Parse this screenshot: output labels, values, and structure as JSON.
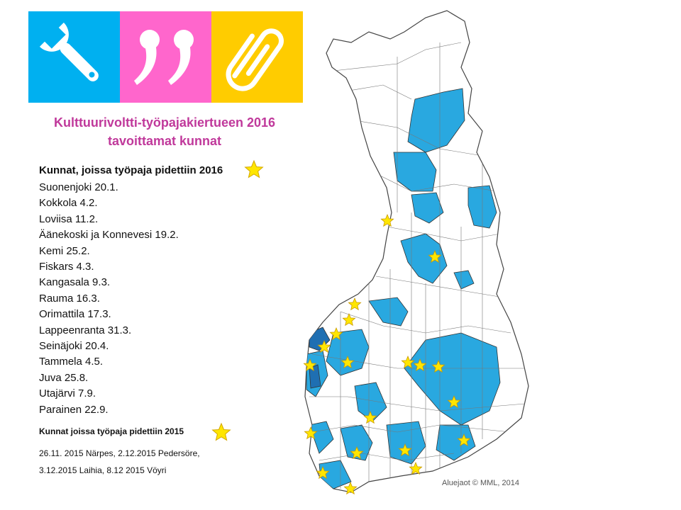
{
  "title_lines": [
    "Kulttuurivoltti-työpajakiertueen 2016",
    "tavoittamat kunnat"
  ],
  "colors": {
    "tile_blue": "#00b0f0",
    "tile_pink": "#ff66cc",
    "tile_yellow": "#ffcc00",
    "title": "#c0399b",
    "municipality_fill": "#29a8e0",
    "coast_fill": "#1f6fb2",
    "star": "#ffe600"
  },
  "icons": [
    "wrench-icon",
    "quote-icon",
    "paperclip-icon",
    "star-icon"
  ],
  "list_2016": {
    "heading": "Kunnat, joissa työpaja pidettiin 2016",
    "items": [
      "Suonenjoki 20.1.",
      "Kokkola 4.2.",
      "Loviisa 11.2.",
      "Äänekoski ja Konnevesi 19.2.",
      "Kemi 25.2.",
      "Fiskars 4.3.",
      "Kangasala 9.3.",
      "Rauma 16.3.",
      "Orimattila 17.3.",
      "Lappeenranta 31.3.",
      "Seinäjoki 20.4.",
      "Tammela 4.5.",
      "Juva 25.8.",
      "Utajärvi 7.9.",
      "Parainen 22.9."
    ]
  },
  "list_2015": {
    "heading": "Kunnat joissa työpaja pidettiin 2015",
    "lines": [
      "26.11. 2015 Närpes, 2.12.2015 Pedersöre,",
      "3.12.2015 Laihia, 8.12 2015 Vöyri"
    ]
  },
  "credit": "Aluejaot © MML, 2014"
}
